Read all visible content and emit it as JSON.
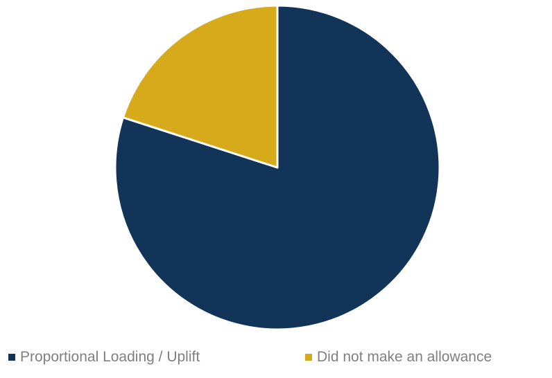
{
  "chart_data": {
    "type": "pie",
    "title": "",
    "slices": [
      {
        "label": "Proportional Loading / Uplift",
        "value": 80,
        "color": "#133459"
      },
      {
        "label": "Did not make an allowance",
        "value": 20,
        "color": "#d6aa1b"
      }
    ],
    "start_angle_deg": 0,
    "direction": "clockwise",
    "slice_border_color": "#ffffff",
    "legend": {
      "position": "bottom",
      "entries": [
        "Proportional Loading / Uplift",
        "Did not make an allowance"
      ]
    }
  }
}
